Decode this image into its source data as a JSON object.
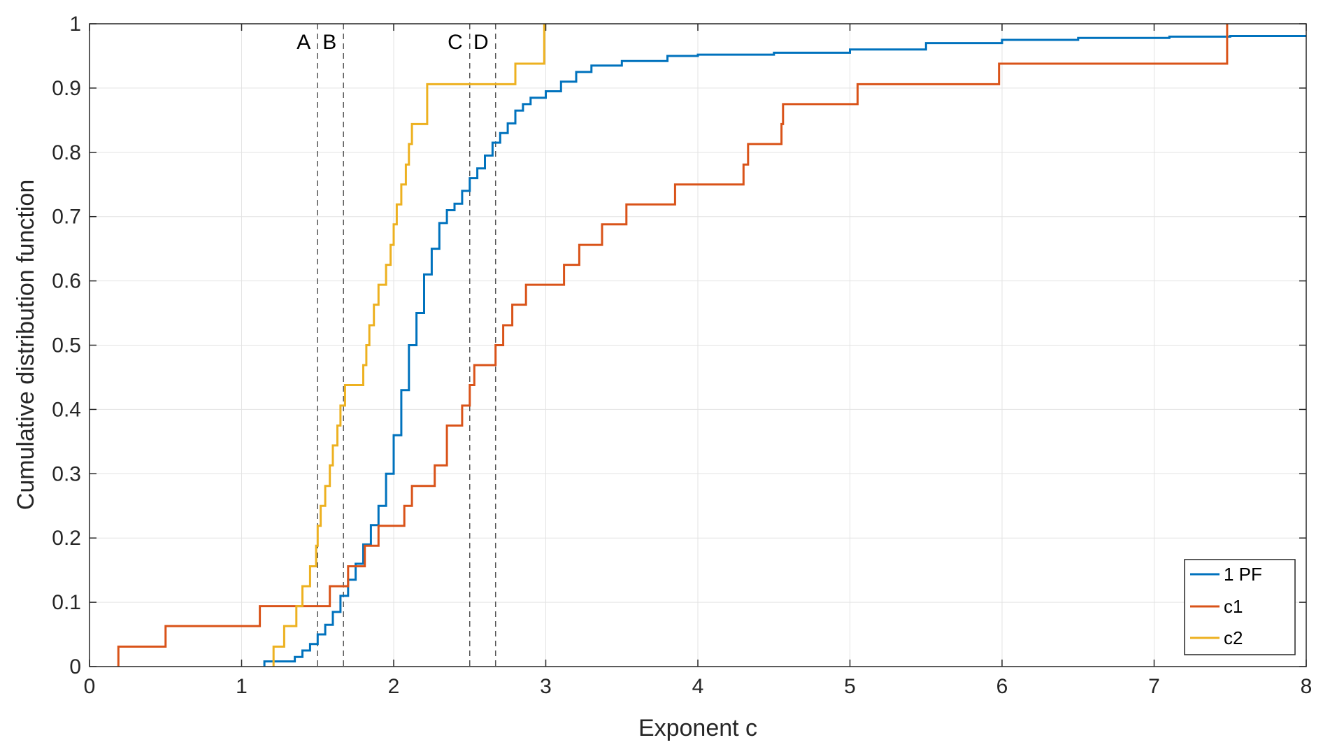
{
  "chart_data": {
    "type": "line",
    "title": "",
    "xlabel": "Exponent c",
    "ylabel": "Cumulative distribution function",
    "xlim": [
      0,
      8
    ],
    "ylim": [
      0,
      1
    ],
    "xticks": [
      0,
      1,
      2,
      3,
      4,
      5,
      6,
      7,
      8
    ],
    "xtick_labels": [
      "0",
      "1",
      "2",
      "3",
      "4",
      "5",
      "6",
      "7",
      "8"
    ],
    "yticks": [
      0,
      0.1,
      0.2,
      0.3,
      0.4,
      0.5,
      0.6,
      0.7,
      0.8,
      0.9,
      1
    ],
    "ytick_labels": [
      "0",
      "0.1",
      "0.2",
      "0.3",
      "0.4",
      "0.5",
      "0.6",
      "0.7",
      "0.8",
      "0.9",
      "1"
    ],
    "grid": true,
    "legend_position": "bottom-right",
    "step": true,
    "series": [
      {
        "name": "1 PF",
        "color": "#0072BD",
        "x": [
          1.15,
          1.2,
          1.3,
          1.35,
          1.4,
          1.45,
          1.5,
          1.55,
          1.6,
          1.65,
          1.7,
          1.75,
          1.8,
          1.85,
          1.9,
          1.95,
          2.0,
          2.05,
          2.1,
          2.15,
          2.2,
          2.25,
          2.3,
          2.35,
          2.4,
          2.45,
          2.5,
          2.55,
          2.6,
          2.65,
          2.7,
          2.75,
          2.8,
          2.85,
          2.9,
          3.0,
          3.1,
          3.2,
          3.3,
          3.5,
          3.8,
          4.0,
          4.5,
          5.0,
          5.5,
          6.0,
          6.5,
          7.1,
          7.5,
          8.0
        ],
        "y": [
          0.008,
          0.008,
          0.008,
          0.015,
          0.025,
          0.035,
          0.05,
          0.065,
          0.085,
          0.11,
          0.135,
          0.16,
          0.19,
          0.22,
          0.25,
          0.3,
          0.36,
          0.43,
          0.5,
          0.55,
          0.61,
          0.65,
          0.69,
          0.71,
          0.72,
          0.74,
          0.76,
          0.775,
          0.795,
          0.815,
          0.83,
          0.845,
          0.865,
          0.875,
          0.885,
          0.895,
          0.91,
          0.925,
          0.935,
          0.942,
          0.95,
          0.952,
          0.955,
          0.96,
          0.97,
          0.975,
          0.978,
          0.98,
          0.981,
          0.981
        ]
      },
      {
        "name": "c1",
        "color": "#D95319",
        "x": [
          0.19,
          0.5,
          1.12,
          1.58,
          1.7,
          1.81,
          1.9,
          2.07,
          2.12,
          2.27,
          2.35,
          2.45,
          2.5,
          2.53,
          2.67,
          2.72,
          2.78,
          2.87,
          3.12,
          3.22,
          3.37,
          3.53,
          3.85,
          4.3,
          4.33,
          4.55,
          4.56,
          5.05,
          5.98,
          7.48
        ],
        "y": [
          0.031,
          0.063,
          0.094,
          0.125,
          0.156,
          0.188,
          0.219,
          0.25,
          0.281,
          0.313,
          0.375,
          0.406,
          0.438,
          0.469,
          0.5,
          0.531,
          0.563,
          0.594,
          0.625,
          0.656,
          0.688,
          0.719,
          0.75,
          0.781,
          0.813,
          0.844,
          0.875,
          0.906,
          0.938,
          0.969
        ]
      },
      {
        "name": "c2",
        "color": "#EDB120",
        "x": [
          1.21,
          1.28,
          1.36,
          1.4,
          1.45,
          1.49,
          1.5,
          1.52,
          1.55,
          1.58,
          1.6,
          1.63,
          1.65,
          1.68,
          1.8,
          1.82,
          1.84,
          1.87,
          1.9,
          1.95,
          1.98,
          2.0,
          2.02,
          2.05,
          2.08,
          2.1,
          2.12,
          2.22,
          2.8,
          2.99
        ],
        "y": [
          0.031,
          0.063,
          0.094,
          0.125,
          0.156,
          0.188,
          0.219,
          0.25,
          0.281,
          0.313,
          0.344,
          0.375,
          0.406,
          0.438,
          0.469,
          0.5,
          0.531,
          0.563,
          0.594,
          0.625,
          0.656,
          0.688,
          0.719,
          0.75,
          0.781,
          0.813,
          0.844,
          0.906,
          0.938,
          0.969
        ]
      }
    ],
    "vlines": [
      {
        "label": "A",
        "x": 1.5
      },
      {
        "label": "B",
        "x": 1.67
      },
      {
        "label": "C",
        "x": 2.5
      },
      {
        "label": "D",
        "x": 2.67
      }
    ]
  }
}
